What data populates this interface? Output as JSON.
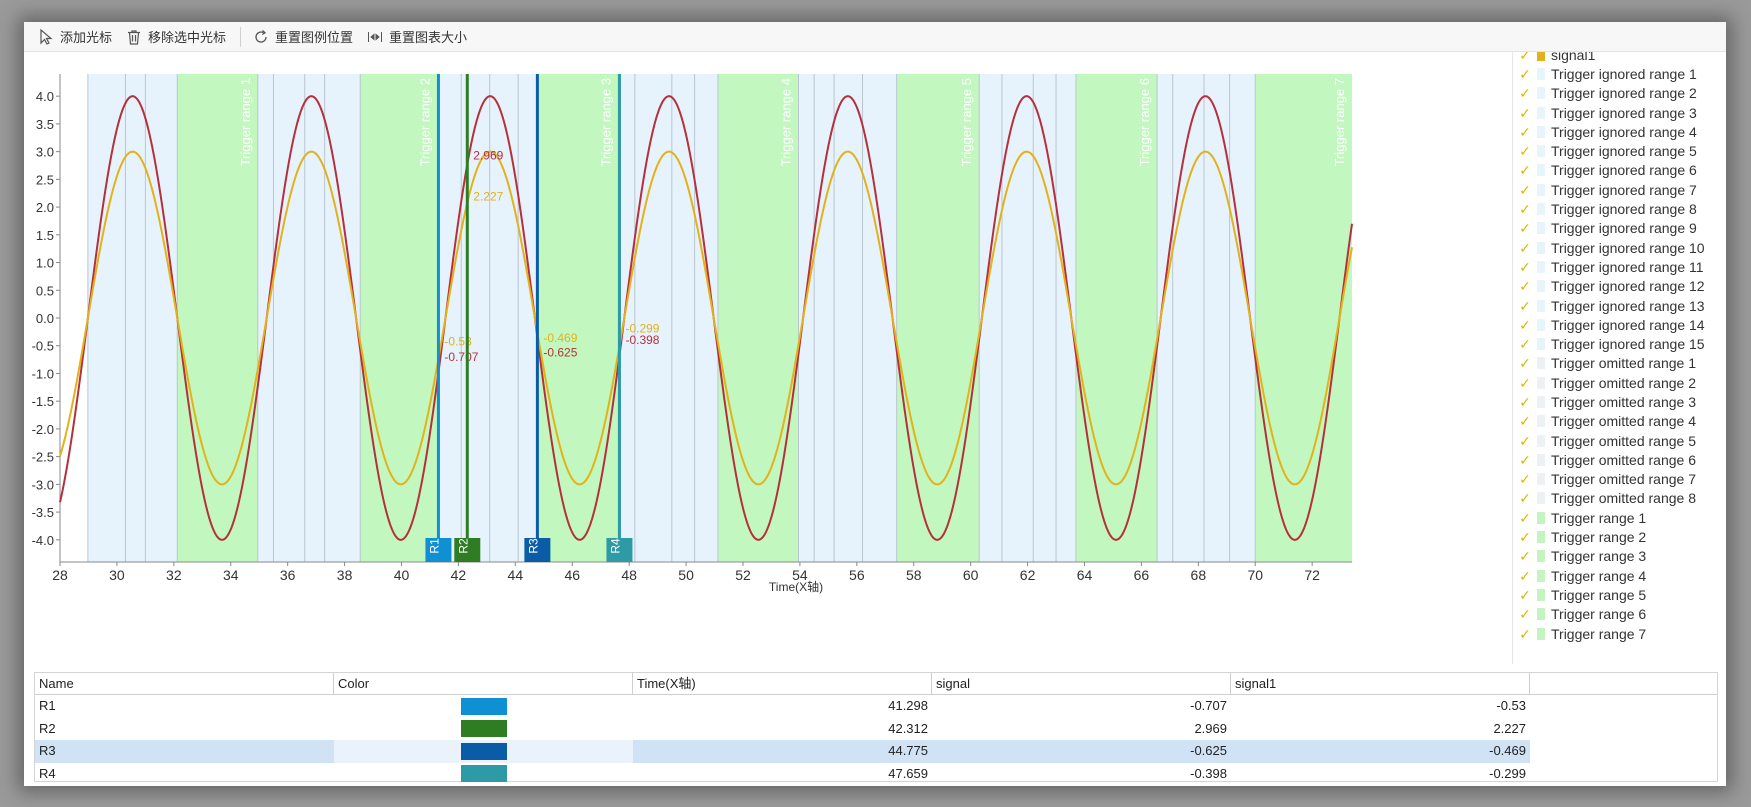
{
  "toolbar": {
    "add_cursor": "添加光标",
    "remove_cursor": "移除选中光标",
    "reset_legend": "重置图例位置",
    "reset_chart_size": "重置图表大小"
  },
  "chart_data": {
    "type": "line",
    "xlabel": "Time(X轴)",
    "ylabel": "",
    "xlim": [
      28,
      73.4
    ],
    "ylim": [
      -4.4,
      4.4
    ],
    "x_ticks": [
      28,
      30,
      32,
      34,
      36,
      38,
      40,
      42,
      44,
      46,
      48,
      50,
      52,
      54,
      56,
      58,
      60,
      62,
      64,
      66,
      68,
      70,
      72
    ],
    "y_ticks": [
      4.0,
      3.5,
      3.0,
      2.5,
      2.0,
      1.5,
      1.0,
      0.5,
      0.0,
      -0.5,
      -1.0,
      -1.5,
      -2.0,
      -2.5,
      -3.0,
      -3.5,
      -4.0
    ],
    "series": [
      {
        "name": "signal",
        "amplitude": 4,
        "period": 6.283,
        "color": "#b5303c"
      },
      {
        "name": "signal1",
        "amplitude": 3,
        "period": 6.283,
        "color": "#e3b21a"
      }
    ],
    "regions": [
      {
        "type": "ignored",
        "start": 28.98,
        "end": 32.12
      },
      {
        "type": "trigger",
        "label": "Trigger range 1",
        "start": 32.12,
        "end": 34.95
      },
      {
        "type": "ignored",
        "start": 34.95,
        "end": 38.55
      },
      {
        "type": "trigger",
        "label": "Trigger range 2",
        "start": 38.55,
        "end": 41.27
      },
      {
        "type": "ignored",
        "start": 41.27,
        "end": 44.77
      },
      {
        "type": "trigger",
        "label": "Trigger range 3",
        "start": 44.77,
        "end": 47.62
      },
      {
        "type": "ignored",
        "start": 47.62,
        "end": 51.12
      },
      {
        "type": "trigger",
        "label": "Trigger range 4",
        "start": 51.12,
        "end": 53.95
      },
      {
        "type": "ignored",
        "start": 53.95,
        "end": 57.4
      },
      {
        "type": "trigger",
        "label": "Trigger range 5",
        "start": 57.4,
        "end": 60.3
      },
      {
        "type": "ignored",
        "start": 60.3,
        "end": 63.7
      },
      {
        "type": "trigger",
        "label": "Trigger range 6",
        "start": 63.7,
        "end": 66.55
      },
      {
        "type": "ignored",
        "start": 66.55,
        "end": 70.0
      },
      {
        "type": "trigger",
        "label": "Trigger range 7",
        "start": 70.0,
        "end": 73.4
      }
    ],
    "ignored_lines": [
      30.3,
      31.0,
      35.5,
      36.6,
      37.3,
      42.1,
      43.1,
      44.1,
      48.2,
      49.5,
      50.3,
      54.5,
      55.2,
      56.2,
      61.1,
      62.2,
      63.0,
      67.1,
      68.2,
      69.1
    ],
    "cursors": [
      {
        "name": "R1",
        "x": 41.298,
        "color": "#0e90d2",
        "signal": "-0.707",
        "signal1": "-0.53"
      },
      {
        "name": "R2",
        "x": 42.312,
        "color": "#2e7d22",
        "signal": "2.969",
        "signal1": "2.227"
      },
      {
        "name": "R3",
        "x": 44.775,
        "color": "#0b5ca6",
        "signal": "-0.625",
        "signal1": "-0.469"
      },
      {
        "name": "R4",
        "x": 47.659,
        "color": "#2e9aa6",
        "signal": "-0.398",
        "signal1": "-0.299"
      }
    ]
  },
  "legend": {
    "partial_top": "signal1",
    "items": [
      {
        "label": "Trigger ignored range 1",
        "swatch": "#e8f4fc"
      },
      {
        "label": "Trigger ignored range 2",
        "swatch": "#e8f4fc"
      },
      {
        "label": "Trigger ignored range 3",
        "swatch": "#e8f4fc"
      },
      {
        "label": "Trigger ignored range 4",
        "swatch": "#e8f4fc"
      },
      {
        "label": "Trigger ignored range 5",
        "swatch": "#e8f4fc"
      },
      {
        "label": "Trigger ignored range 6",
        "swatch": "#e8f4fc"
      },
      {
        "label": "Trigger ignored range 7",
        "swatch": "#e8f4fc"
      },
      {
        "label": "Trigger ignored range 8",
        "swatch": "#e8f4fc"
      },
      {
        "label": "Trigger ignored range 9",
        "swatch": "#e8f4fc"
      },
      {
        "label": "Trigger ignored range 10",
        "swatch": "#e8f4fc"
      },
      {
        "label": "Trigger ignored range 11",
        "swatch": "#e8f4fc"
      },
      {
        "label": "Trigger ignored range 12",
        "swatch": "#e8f4fc"
      },
      {
        "label": "Trigger ignored range 13",
        "swatch": "#e8f4fc"
      },
      {
        "label": "Trigger ignored range 14",
        "swatch": "#e8f4fc"
      },
      {
        "label": "Trigger ignored range 15",
        "swatch": "#e8f4fc"
      },
      {
        "label": "Trigger omitted range 1",
        "swatch": "#eef1f3"
      },
      {
        "label": "Trigger omitted range 2",
        "swatch": "#eef1f3"
      },
      {
        "label": "Trigger omitted range 3",
        "swatch": "#eef1f3"
      },
      {
        "label": "Trigger omitted range 4",
        "swatch": "#eef1f3"
      },
      {
        "label": "Trigger omitted range 5",
        "swatch": "#eef1f3"
      },
      {
        "label": "Trigger omitted range 6",
        "swatch": "#eef1f3"
      },
      {
        "label": "Trigger omitted range 7",
        "swatch": "#eef1f3"
      },
      {
        "label": "Trigger omitted range 8",
        "swatch": "#eef1f3"
      },
      {
        "label": "Trigger range 1",
        "swatch": "#c4f5c0"
      },
      {
        "label": "Trigger range 2",
        "swatch": "#c4f5c0"
      },
      {
        "label": "Trigger range 3",
        "swatch": "#c4f5c0"
      },
      {
        "label": "Trigger range 4",
        "swatch": "#c4f5c0"
      },
      {
        "label": "Trigger range 5",
        "swatch": "#c4f5c0"
      },
      {
        "label": "Trigger range 6",
        "swatch": "#c4f5c0"
      },
      {
        "label": "Trigger range 7",
        "swatch": "#c4f5c0"
      }
    ]
  },
  "table": {
    "columns": [
      "Name",
      "Color",
      "Time(X轴)",
      "signal",
      "signal1"
    ],
    "rows": [
      {
        "name": "R1",
        "color": "#0e90d2",
        "time": "41.298",
        "signal": "-0.707",
        "signal1": "-0.53",
        "selected": false
      },
      {
        "name": "R2",
        "color": "#2e7d22",
        "time": "42.312",
        "signal": "2.969",
        "signal1": "2.227",
        "selected": false
      },
      {
        "name": "R3",
        "color": "#0b5ca6",
        "time": "44.775",
        "signal": "-0.625",
        "signal1": "-0.469",
        "selected": true
      },
      {
        "name": "R4",
        "color": "#2e9aa6",
        "time": "47.659",
        "signal": "-0.398",
        "signal1": "-0.299",
        "selected": false
      }
    ]
  }
}
